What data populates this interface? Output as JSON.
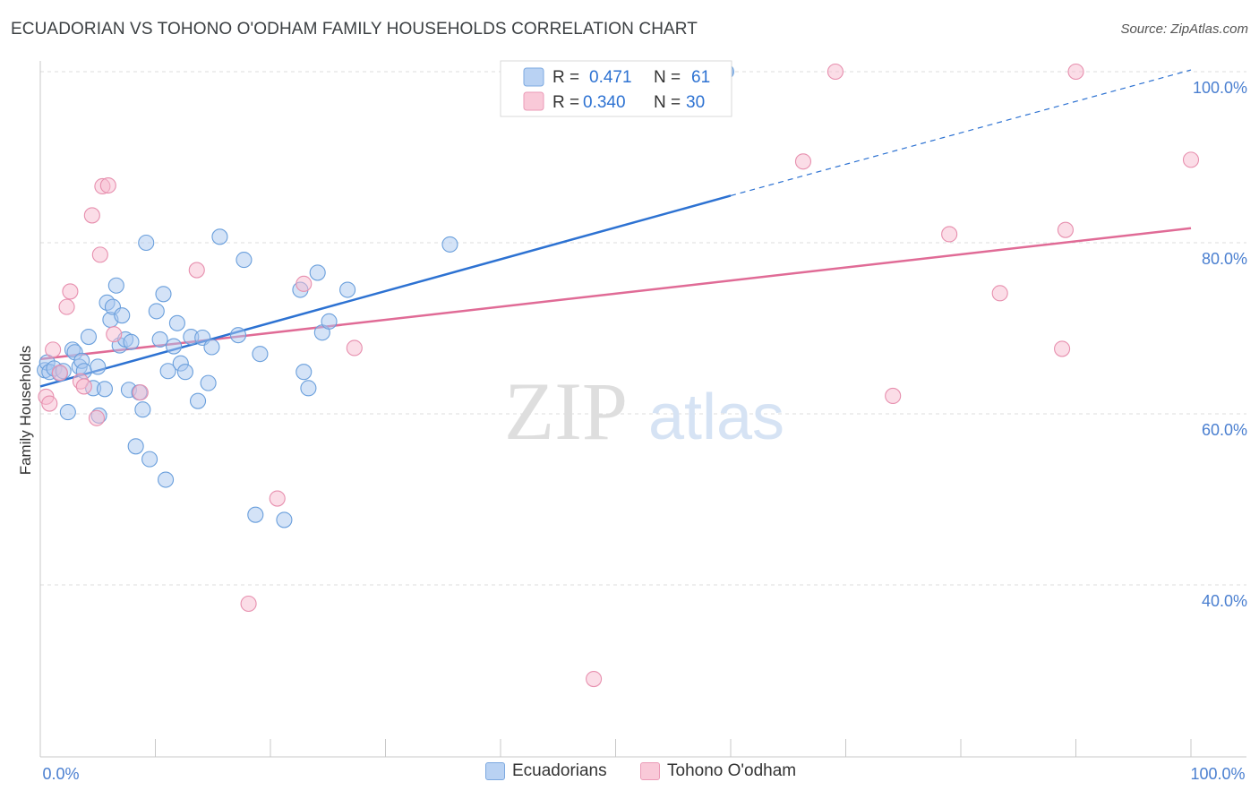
{
  "title": "ECUADORIAN VS TOHONO O'ODHAM FAMILY HOUSEHOLDS CORRELATION CHART",
  "source": "Source: ZipAtlas.com",
  "watermark": {
    "zip": "ZIP",
    "atlas": "atlas"
  },
  "colors": {
    "blue_fill": "#a9c8f0",
    "blue_stroke": "#6a9fdc",
    "blue_line": "#2d72d2",
    "pink_fill": "#f7bcd0",
    "pink_stroke": "#e78fae",
    "pink_line": "#e06b96",
    "axis_text": "#4a7fd0",
    "grid": "#dcdcdc"
  },
  "legend": {
    "rows": [
      {
        "r_label": "R =",
        "r_value": "0.471",
        "n_label": "N =",
        "n_value": "61"
      },
      {
        "r_label": "R =",
        "r_value": "0.340",
        "n_label": "N =",
        "n_value": "30"
      }
    ]
  },
  "bottom_legend": [
    {
      "label": "Ecuadorians"
    },
    {
      "label": "Tohono O'odham"
    }
  ],
  "chart_data": {
    "type": "scatter",
    "title": "ECUADORIAN VS TOHONO O'ODHAM FAMILY HOUSEHOLDS CORRELATION CHART",
    "xlabel": "",
    "ylabel": "Family Households",
    "xlim": [
      0,
      100
    ],
    "ylim": [
      20,
      102
    ],
    "x_tick_labels": [
      "0.0%",
      "100.0%"
    ],
    "y_ticks": [
      40,
      60,
      80,
      100
    ],
    "y_tick_labels": [
      "40.0%",
      "60.0%",
      "80.0%",
      "100.0%"
    ],
    "series": [
      {
        "name": "Ecuadorians",
        "trend": {
          "x0": 0,
          "y0": 63.2,
          "x1": 60,
          "y1": 85.5,
          "dash_x1": 100,
          "dash_y1": 100.2
        },
        "points": [
          [
            0.4,
            65.1
          ],
          [
            0.6,
            66.0
          ],
          [
            0.8,
            64.9
          ],
          [
            1.2,
            65.3
          ],
          [
            1.7,
            64.7
          ],
          [
            2.0,
            65.0
          ],
          [
            2.4,
            60.2
          ],
          [
            2.8,
            67.5
          ],
          [
            3.0,
            67.2
          ],
          [
            3.4,
            65.5
          ],
          [
            3.6,
            66.2
          ],
          [
            3.8,
            65.0
          ],
          [
            4.2,
            69.0
          ],
          [
            4.6,
            63.0
          ],
          [
            5.0,
            65.5
          ],
          [
            5.1,
            59.8
          ],
          [
            5.6,
            62.9
          ],
          [
            5.8,
            73.0
          ],
          [
            6.1,
            71.0
          ],
          [
            6.3,
            72.5
          ],
          [
            6.6,
            75.0
          ],
          [
            6.9,
            68.0
          ],
          [
            7.1,
            71.5
          ],
          [
            7.4,
            68.7
          ],
          [
            7.7,
            62.8
          ],
          [
            7.9,
            68.4
          ],
          [
            8.3,
            56.2
          ],
          [
            8.6,
            62.5
          ],
          [
            8.9,
            60.5
          ],
          [
            9.2,
            80.0
          ],
          [
            9.5,
            54.7
          ],
          [
            10.1,
            72.0
          ],
          [
            10.4,
            68.7
          ],
          [
            10.7,
            74.0
          ],
          [
            10.9,
            52.3
          ],
          [
            11.1,
            65.0
          ],
          [
            11.6,
            67.9
          ],
          [
            11.9,
            70.6
          ],
          [
            12.2,
            65.9
          ],
          [
            12.6,
            64.9
          ],
          [
            13.1,
            69.0
          ],
          [
            13.7,
            61.5
          ],
          [
            14.1,
            68.9
          ],
          [
            14.6,
            63.6
          ],
          [
            14.9,
            67.8
          ],
          [
            15.6,
            80.7
          ],
          [
            17.2,
            69.2
          ],
          [
            17.7,
            78.0
          ],
          [
            18.7,
            48.2
          ],
          [
            19.1,
            67.0
          ],
          [
            21.2,
            47.6
          ],
          [
            22.6,
            74.5
          ],
          [
            22.9,
            64.9
          ],
          [
            23.3,
            63.0
          ],
          [
            24.1,
            76.5
          ],
          [
            24.5,
            69.5
          ],
          [
            25.1,
            70.8
          ],
          [
            26.7,
            74.5
          ],
          [
            35.6,
            79.8
          ],
          [
            59.5,
            100.0
          ],
          [
            59.6,
            100.0
          ]
        ]
      },
      {
        "name": "Tohono O'odham",
        "trend": {
          "x0": 0,
          "y0": 66.4,
          "x1": 100,
          "y1": 81.7
        },
        "points": [
          [
            0.5,
            62.0
          ],
          [
            0.8,
            61.2
          ],
          [
            1.1,
            67.5
          ],
          [
            1.7,
            64.8
          ],
          [
            2.3,
            72.5
          ],
          [
            2.6,
            74.3
          ],
          [
            3.5,
            63.8
          ],
          [
            3.8,
            63.2
          ],
          [
            4.5,
            83.2
          ],
          [
            4.9,
            59.5
          ],
          [
            5.2,
            78.6
          ],
          [
            5.4,
            86.6
          ],
          [
            5.9,
            86.7
          ],
          [
            6.4,
            69.3
          ],
          [
            8.7,
            62.5
          ],
          [
            13.6,
            76.8
          ],
          [
            18.1,
            37.8
          ],
          [
            20.6,
            50.1
          ],
          [
            22.9,
            75.2
          ],
          [
            27.3,
            67.7
          ],
          [
            48.1,
            29.0
          ],
          [
            66.3,
            89.5
          ],
          [
            69.1,
            100.0
          ],
          [
            74.1,
            62.1
          ],
          [
            79.0,
            81.0
          ],
          [
            83.4,
            74.1
          ],
          [
            88.8,
            67.6
          ],
          [
            89.1,
            81.5
          ],
          [
            90.0,
            100.0
          ],
          [
            100.0,
            89.7
          ]
        ]
      }
    ]
  }
}
